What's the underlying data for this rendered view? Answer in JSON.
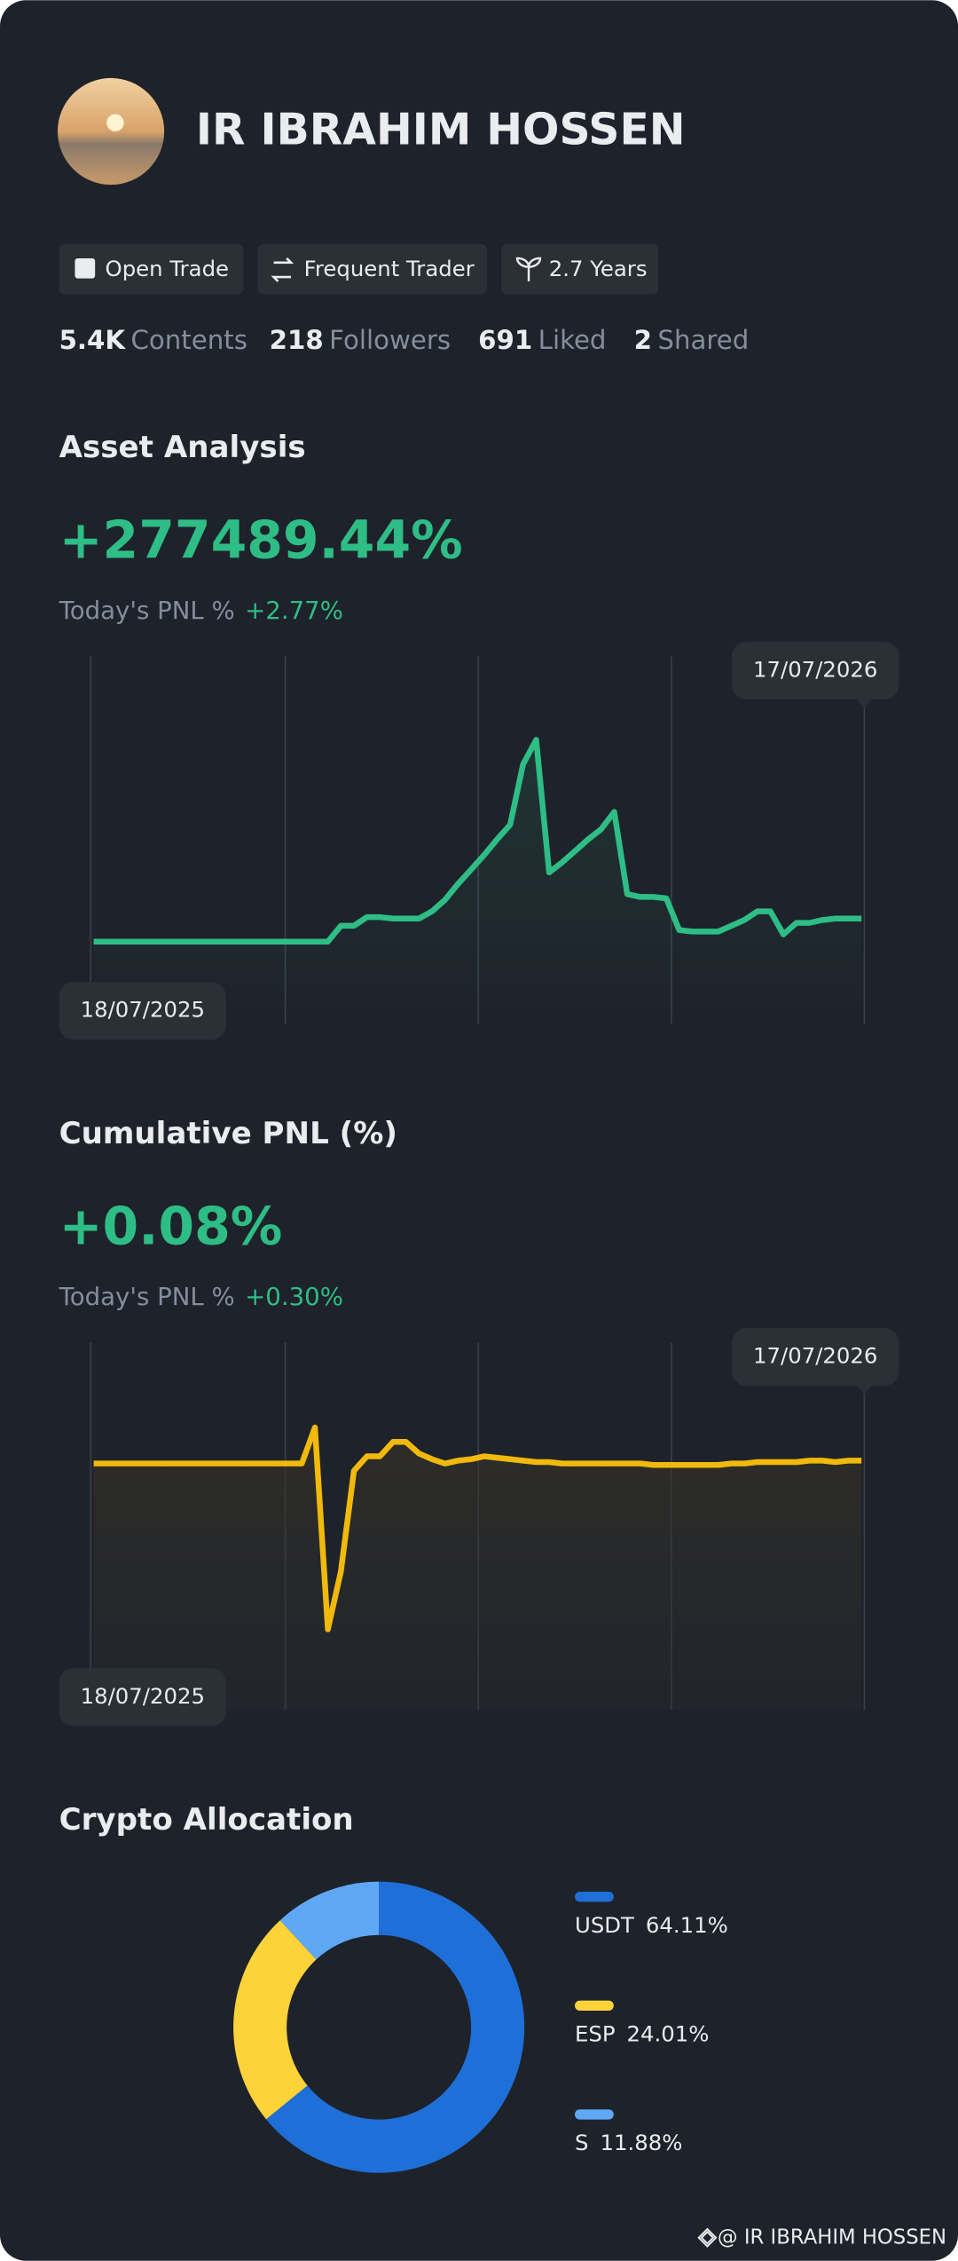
{
  "profile": {
    "name": "IR IBRAHIM HOSSEN",
    "badges": [
      "Open Trade",
      "Frequent Trader",
      "2.7 Years"
    ],
    "stats": [
      {
        "value": "5.4K",
        "label": "Contents"
      },
      {
        "value": "218",
        "label": "Followers"
      },
      {
        "value": "691",
        "label": "Liked"
      },
      {
        "value": "2",
        "label": "Shared"
      }
    ]
  },
  "chart_data": [
    {
      "type": "line",
      "title": "Asset Analysis",
      "headline": "+277489.44%",
      "today_label": "Today's PNL %",
      "today_value": "+2.77%",
      "start_date": "18/07/2025",
      "end_date": "17/07/2026",
      "color": "#2ebd85",
      "values": [
        7,
        7,
        7,
        7,
        7,
        7,
        7,
        7,
        7,
        7,
        7,
        7,
        7,
        7,
        7,
        7,
        7,
        7,
        7,
        18,
        18,
        24,
        24,
        23,
        23,
        23,
        28,
        36,
        47,
        57,
        67,
        78,
        88,
        130,
        147,
        55,
        62,
        70,
        78,
        85,
        97,
        40,
        38,
        38,
        37,
        15,
        14,
        14,
        14,
        18,
        22,
        28,
        28,
        12,
        20,
        20,
        22,
        23,
        23,
        23
      ]
    },
    {
      "type": "line",
      "title": "Cumulative PNL (%)",
      "headline": "+0.08%",
      "today_label": "Today's PNL %",
      "today_value": "+0.30%",
      "start_date": "18/07/2025",
      "end_date": "17/07/2026",
      "color": "#f0b90b",
      "values": [
        35,
        35,
        35,
        35,
        35,
        35,
        35,
        35,
        35,
        35,
        35,
        35,
        35,
        35,
        35,
        35,
        35,
        60,
        -80,
        -40,
        30,
        40,
        40,
        50,
        50,
        42,
        38,
        35,
        37,
        38,
        40,
        39,
        38,
        37,
        36,
        36,
        35,
        35,
        35,
        35,
        35,
        35,
        35,
        34,
        34,
        34,
        34,
        34,
        34,
        35,
        35,
        36,
        36,
        36,
        36,
        37,
        37,
        36,
        37,
        37
      ]
    },
    {
      "type": "donut",
      "title": "Crypto Allocation",
      "categories": [
        "USDT",
        "ESP",
        "S"
      ],
      "values": [
        64.11,
        24.01,
        11.88
      ],
      "value_labels": [
        "64.11%",
        "24.01%",
        "11.88%"
      ],
      "colors": [
        "#1f6fd8",
        "#fdd33a",
        "#5ea8f5"
      ]
    }
  ],
  "footer": "@ IR IBRAHIM HOSSEN"
}
